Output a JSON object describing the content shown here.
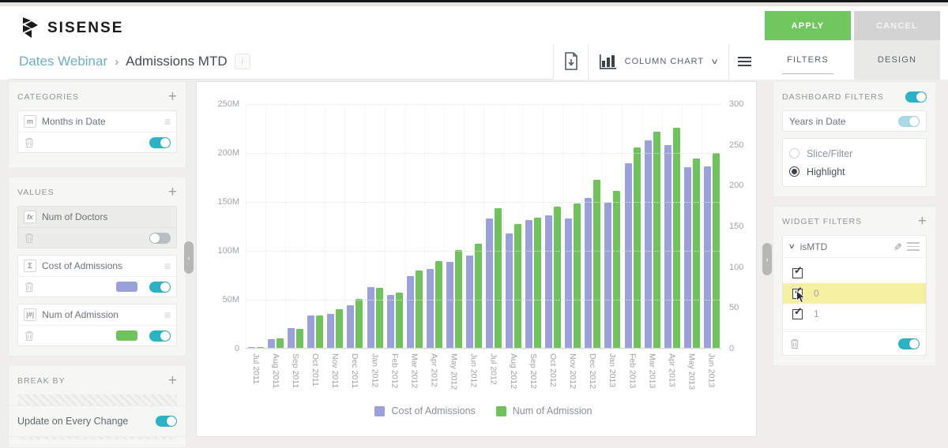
{
  "brand": {
    "logo_text": "SISENSE"
  },
  "breadcrumb": {
    "dashboard": "Dates Webinar",
    "separator": "›",
    "widget": "Admissions MTD",
    "info": "i"
  },
  "toolbar": {
    "chart_type_label": "COLUMN CHART"
  },
  "actions": {
    "apply": "APPLY",
    "cancel": "CANCEL"
  },
  "tabs": {
    "filters": "FILTERS",
    "design": "DESIGN"
  },
  "panels": {
    "categories": {
      "title": "CATEGORIES",
      "items": [
        {
          "badge": "m",
          "label": "Months in Date",
          "enabled": true
        }
      ]
    },
    "values": {
      "title": "VALUES",
      "items": [
        {
          "badge": "fx",
          "label": "Num of Doctors",
          "enabled": false,
          "color": ""
        },
        {
          "badge": "Σ",
          "label": "Cost of Admissions",
          "enabled": true,
          "color": "#9aa0d9"
        },
        {
          "badge": "|#|",
          "label": "Num of Admission",
          "enabled": true,
          "color": "#6ec35b"
        }
      ]
    },
    "break_by": {
      "title": "BREAK BY"
    },
    "update_label": "Update on Every Change",
    "update_enabled": true
  },
  "filters": {
    "dashboard": {
      "title": "DASHBOARD FILTERS",
      "enabled": true,
      "items": [
        {
          "label": "Years in Date",
          "enabled": true
        }
      ],
      "modes": [
        {
          "label": "Slice/Filter",
          "selected": false
        },
        {
          "label": "Highlight",
          "selected": true
        }
      ]
    },
    "widget": {
      "title": "WIDGET FILTERS",
      "name": "isMTD",
      "enabled": true,
      "options": [
        {
          "label": "",
          "checked": true,
          "highlighted": false
        },
        {
          "label": "0",
          "checked": true,
          "highlighted": true,
          "has_cursor": true
        },
        {
          "label": "1",
          "checked": true,
          "highlighted": false
        }
      ]
    }
  },
  "chart_data": {
    "type": "bar",
    "title": "",
    "categories": [
      "Jul 2011",
      "Aug 2011",
      "Sep 2011",
      "Oct 2011",
      "Nov 2011",
      "Dec 2011",
      "Jan 2012",
      "Feb 2012",
      "Mar 2012",
      "Apr 2012",
      "May 2012",
      "Jun 2012",
      "Jul 2012",
      "Aug 2012",
      "Sep 2012",
      "Oct 2012",
      "Nov 2012",
      "Dec 2012",
      "Jan 2013",
      "Feb 2013",
      "Mar 2013",
      "Apr 2013",
      "May 2013",
      "Jun 2013"
    ],
    "series": [
      {
        "name": "Cost of Admissions",
        "axis": "left",
        "color": "#9aa0d9",
        "unit": "M",
        "values": [
          1,
          9,
          20,
          33,
          35,
          44,
          62,
          54,
          74,
          81,
          88,
          95,
          133,
          117,
          131,
          136,
          133,
          154,
          149,
          189,
          213,
          208,
          185,
          186
        ]
      },
      {
        "name": "Num of Admission",
        "axis": "right",
        "color": "#6ec35b",
        "values": [
          1,
          12,
          23,
          40,
          48,
          60,
          74,
          68,
          95,
          107,
          120,
          128,
          172,
          152,
          160,
          174,
          178,
          207,
          193,
          247,
          266,
          271,
          233,
          240
        ]
      }
    ],
    "left_axis": {
      "ticks": [
        "250M",
        "200M",
        "150M",
        "100M",
        "50M",
        "0"
      ],
      "max": 250
    },
    "right_axis": {
      "ticks": [
        "300",
        "250",
        "200",
        "150",
        "100",
        "50",
        "0"
      ],
      "max": 300
    },
    "grid": true,
    "legend_position": "bottom"
  }
}
